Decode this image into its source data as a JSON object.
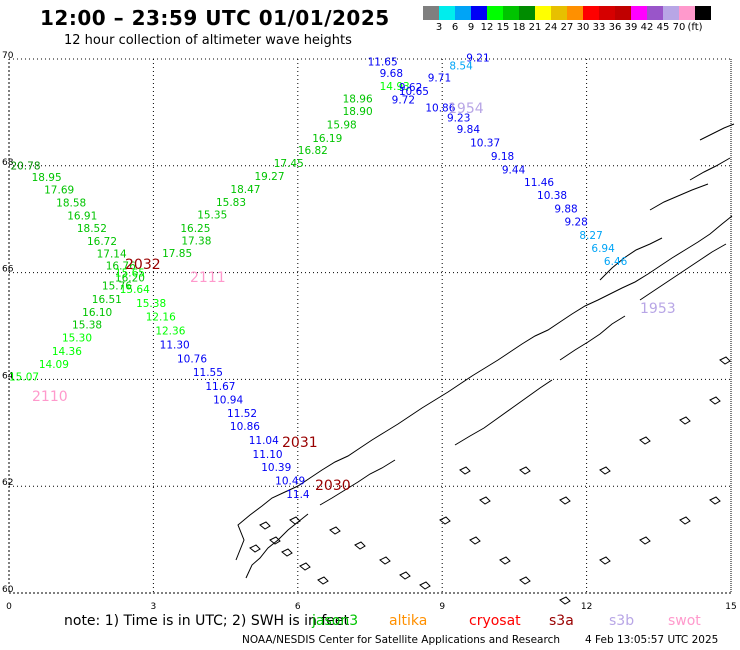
{
  "header": {
    "title": "12:00 – 23:59 UTC 01/01/2025",
    "subtitle": "12 hour collection of altimeter wave heights"
  },
  "scale": {
    "colors": [
      "#7f7f7f",
      "#00eded",
      "#00a4f6",
      "#0000f6",
      "#00ff00",
      "#00c400",
      "#008c00",
      "#ffff00",
      "#e7c000",
      "#ff9000",
      "#ff0000",
      "#d60000",
      "#c00000",
      "#ff00ff",
      "#9955c9",
      "#b8a6e6",
      "#ff99cc",
      "#000000"
    ],
    "labels": [
      "3",
      "6",
      "9",
      "12",
      "15",
      "18",
      "21",
      "24",
      "27",
      "30",
      "33",
      "36",
      "39",
      "42",
      "45",
      "70",
      "(ft)"
    ]
  },
  "map": {
    "region": "Norwegian coast",
    "lat_ticks": [
      "70",
      "68",
      "66",
      "64",
      "62",
      "60"
    ],
    "lon_ticks": [
      "0",
      "3",
      "6",
      "9",
      "12",
      "15"
    ],
    "grid": "dotted",
    "line_labels": [
      {
        "text": "2032",
        "color": "#990000"
      },
      {
        "text": "2111",
        "color": "#ff99cc"
      },
      {
        "text": "2110",
        "color": "#ff99cc"
      },
      {
        "text": "2031",
        "color": "#990000"
      },
      {
        "text": "2030",
        "color": "#990000"
      },
      {
        "text": "1954",
        "color": "#b8a6e6"
      },
      {
        "text": "1953",
        "color": "#b8a6e6"
      }
    ]
  },
  "chart_data": {
    "type": "scatter",
    "title": "12:00 – 23:59 UTC 01/01/2025",
    "xlabel": "",
    "ylabel": "",
    "xlim": [
      0,
      15
    ],
    "ylim": [
      60,
      70
    ],
    "x_ticks": [
      "0",
      "3",
      "6",
      "9",
      "12",
      "15"
    ],
    "y_ticks": [
      "60",
      "62",
      "64",
      "66",
      "68",
      "70"
    ],
    "units": "ft",
    "tracks": [
      {
        "label": "2032",
        "points": [
          {
            "lon": 0.03,
            "lat": 67.93,
            "value": "20.78",
            "color": "#008c00"
          },
          {
            "lon": 0.47,
            "lat": 67.72,
            "value": "18.95",
            "color": "#00c400"
          },
          {
            "lon": 0.73,
            "lat": 67.48,
            "value": "17.69",
            "color": "#00c400"
          },
          {
            "lon": 0.98,
            "lat": 67.24,
            "value": "18.58",
            "color": "#00c400"
          },
          {
            "lon": 1.21,
            "lat": 66.99,
            "value": "16.91",
            "color": "#00c400"
          },
          {
            "lon": 1.41,
            "lat": 66.76,
            "value": "18.52",
            "color": "#00c400"
          },
          {
            "lon": 1.62,
            "lat": 66.52,
            "value": "16.72",
            "color": "#00c400"
          },
          {
            "lon": 1.82,
            "lat": 66.28,
            "value": "17.14",
            "color": "#00c400"
          },
          {
            "lon": 2.01,
            "lat": 66.06,
            "value": "16.76",
            "color": "#00c400"
          },
          {
            "lon": 2.2,
            "lat": 65.83,
            "value": "16.20",
            "color": "#00c400"
          },
          {
            "lon": 2.3,
            "lat": 65.62,
            "value": "15.64",
            "color": "#00ff00"
          },
          {
            "lon": 2.64,
            "lat": 65.36,
            "value": "15.38",
            "color": "#00ff00"
          },
          {
            "lon": 2.84,
            "lat": 65.1,
            "value": "12.16",
            "color": "#00ff00"
          },
          {
            "lon": 3.04,
            "lat": 64.84,
            "value": "12.36",
            "color": "#00ff00"
          },
          {
            "lon": 3.13,
            "lat": 64.58,
            "value": "11.30",
            "color": "#0000f6"
          },
          {
            "lon": 3.49,
            "lat": 64.32,
            "value": "10.76",
            "color": "#0000f6"
          },
          {
            "lon": 3.82,
            "lat": 64.06,
            "value": "11.55",
            "color": "#0000f6"
          },
          {
            "lon": 4.08,
            "lat": 63.8,
            "value": "11.67",
            "color": "#0000f6"
          },
          {
            "lon": 4.24,
            "lat": 63.55,
            "value": "10.94",
            "color": "#0000f6"
          },
          {
            "lon": 4.53,
            "lat": 63.3,
            "value": "11.52",
            "color": "#0000f6"
          },
          {
            "lon": 4.59,
            "lat": 63.05,
            "value": "10.86",
            "color": "#0000f6"
          },
          {
            "lon": 4.98,
            "lat": 62.79,
            "value": "11.04",
            "color": "#0000f6"
          },
          {
            "lon": 5.06,
            "lat": 62.53,
            "value": "11.10",
            "color": "#0000f6"
          },
          {
            "lon": 5.24,
            "lat": 62.28,
            "value": "10.39",
            "color": "#0000f6"
          },
          {
            "lon": 5.53,
            "lat": 62.03,
            "value": "10.49",
            "color": "#0000f6"
          },
          {
            "lon": 5.76,
            "lat": 61.78,
            "value": "11.4",
            "color": "#0000f6"
          }
        ]
      },
      {
        "label": "2111",
        "points": [
          {
            "lon": 0.0,
            "lat": 63.98,
            "value": "15.07",
            "color": "#00ff00"
          },
          {
            "lon": 0.62,
            "lat": 64.21,
            "value": "14.09",
            "color": "#00ff00"
          },
          {
            "lon": 0.89,
            "lat": 64.46,
            "value": "14.36",
            "color": "#00ff00"
          },
          {
            "lon": 1.1,
            "lat": 64.71,
            "value": "15.30",
            "color": "#00ff00"
          },
          {
            "lon": 1.31,
            "lat": 64.95,
            "value": "15.38",
            "color": "#00c400"
          },
          {
            "lon": 1.52,
            "lat": 65.19,
            "value": "16.10",
            "color": "#00c400"
          },
          {
            "lon": 1.72,
            "lat": 65.43,
            "value": "16.51",
            "color": "#00c400"
          },
          {
            "lon": 1.93,
            "lat": 65.68,
            "value": "15.76",
            "color": "#00c400"
          },
          {
            "lon": 2.2,
            "lat": 65.93,
            "value": "15.65",
            "color": "#00ff00"
          },
          {
            "lon": 3.18,
            "lat": 66.29,
            "value": "17.85",
            "color": "#00c400"
          },
          {
            "lon": 3.58,
            "lat": 66.53,
            "value": "17.38",
            "color": "#00c400"
          },
          {
            "lon": 3.56,
            "lat": 66.76,
            "value": "16.25",
            "color": "#00c400"
          },
          {
            "lon": 3.91,
            "lat": 67.01,
            "value": "15.35",
            "color": "#00c400"
          },
          {
            "lon": 4.3,
            "lat": 67.25,
            "value": "15.83",
            "color": "#00c400"
          },
          {
            "lon": 4.6,
            "lat": 67.49,
            "value": "18.47",
            "color": "#00c400"
          },
          {
            "lon": 5.1,
            "lat": 67.73,
            "value": "19.27",
            "color": "#00c400"
          },
          {
            "lon": 5.5,
            "lat": 67.98,
            "value": "17.45",
            "color": "#00c400"
          },
          {
            "lon": 6.0,
            "lat": 68.22,
            "value": "16.82",
            "color": "#00c400"
          },
          {
            "lon": 6.3,
            "lat": 68.45,
            "value": "16.19",
            "color": "#00c400"
          },
          {
            "lon": 6.6,
            "lat": 68.7,
            "value": "15.98",
            "color": "#00c400"
          },
          {
            "lon": 6.93,
            "lat": 68.95,
            "value": "18.90",
            "color": "#00c400"
          },
          {
            "lon": 6.93,
            "lat": 69.19,
            "value": "18.96",
            "color": "#00c400"
          },
          {
            "lon": 7.7,
            "lat": 69.42,
            "value": "14.93",
            "color": "#00ff00"
          }
        ]
      },
      {
        "label": "1954",
        "points": [
          {
            "lon": 9.5,
            "lat": 69.95,
            "value": "9.21",
            "color": "#0000f6"
          },
          {
            "lon": 7.45,
            "lat": 69.88,
            "value": "11.65",
            "color": "#0000f6"
          },
          {
            "lon": 9.15,
            "lat": 69.8,
            "value": "8.54",
            "color": "#00a4f6"
          },
          {
            "lon": 7.7,
            "lat": 69.66,
            "value": "9.68",
            "color": "#0000f6"
          },
          {
            "lon": 8.7,
            "lat": 69.58,
            "value": "9.71",
            "color": "#0000f6"
          },
          {
            "lon": 8.1,
            "lat": 69.4,
            "value": "9.62",
            "color": "#0000f6"
          },
          {
            "lon": 8.1,
            "lat": 69.33,
            "value": "10.65",
            "color": "#0000f6"
          },
          {
            "lon": 7.95,
            "lat": 69.17,
            "value": "9.72",
            "color": "#0000f6"
          },
          {
            "lon": 8.65,
            "lat": 69.02,
            "value": "10.86",
            "color": "#0000f6"
          },
          {
            "lon": 9.1,
            "lat": 68.83,
            "value": "9.23",
            "color": "#0000f6"
          },
          {
            "lon": 9.3,
            "lat": 68.61,
            "value": "9.84",
            "color": "#0000f6"
          },
          {
            "lon": 9.58,
            "lat": 68.36,
            "value": "10.37",
            "color": "#0000f6"
          },
          {
            "lon": 10.01,
            "lat": 68.11,
            "value": "9.18",
            "color": "#0000f6"
          },
          {
            "lon": 10.24,
            "lat": 67.86,
            "value": "9.44",
            "color": "#0000f6"
          },
          {
            "lon": 10.7,
            "lat": 67.62,
            "value": "11.46",
            "color": "#0000f6"
          },
          {
            "lon": 10.97,
            "lat": 67.38,
            "value": "10.38",
            "color": "#0000f6"
          },
          {
            "lon": 11.33,
            "lat": 67.13,
            "value": "9.88",
            "color": "#0000f6"
          },
          {
            "lon": 11.54,
            "lat": 66.88,
            "value": "9.28",
            "color": "#0000f6"
          },
          {
            "lon": 11.85,
            "lat": 66.63,
            "value": "8.27",
            "color": "#00a4f6"
          },
          {
            "lon": 12.1,
            "lat": 66.39,
            "value": "6.94",
            "color": "#00a4f6"
          },
          {
            "lon": 12.36,
            "lat": 66.14,
            "value": "6.46",
            "color": "#00a4f6"
          }
        ]
      }
    ]
  },
  "footer": {
    "note": "note:  1) Time is in UTC;  2) SWH is in feet",
    "satellites": [
      {
        "name": "jason3",
        "color": "#00c400"
      },
      {
        "name": "altika",
        "color": "#ff9000"
      },
      {
        "name": "cryosat",
        "color": "#ff0000"
      },
      {
        "name": "s3a",
        "color": "#990000"
      },
      {
        "name": "s3b",
        "color": "#b8a6e6"
      },
      {
        "name": "swot",
        "color": "#ff99cc"
      }
    ],
    "credit": "NOAA/NESDIS Center for Satellite Applications and Research",
    "timestamp": "4 Feb 13:05:57 UTC 2025"
  }
}
